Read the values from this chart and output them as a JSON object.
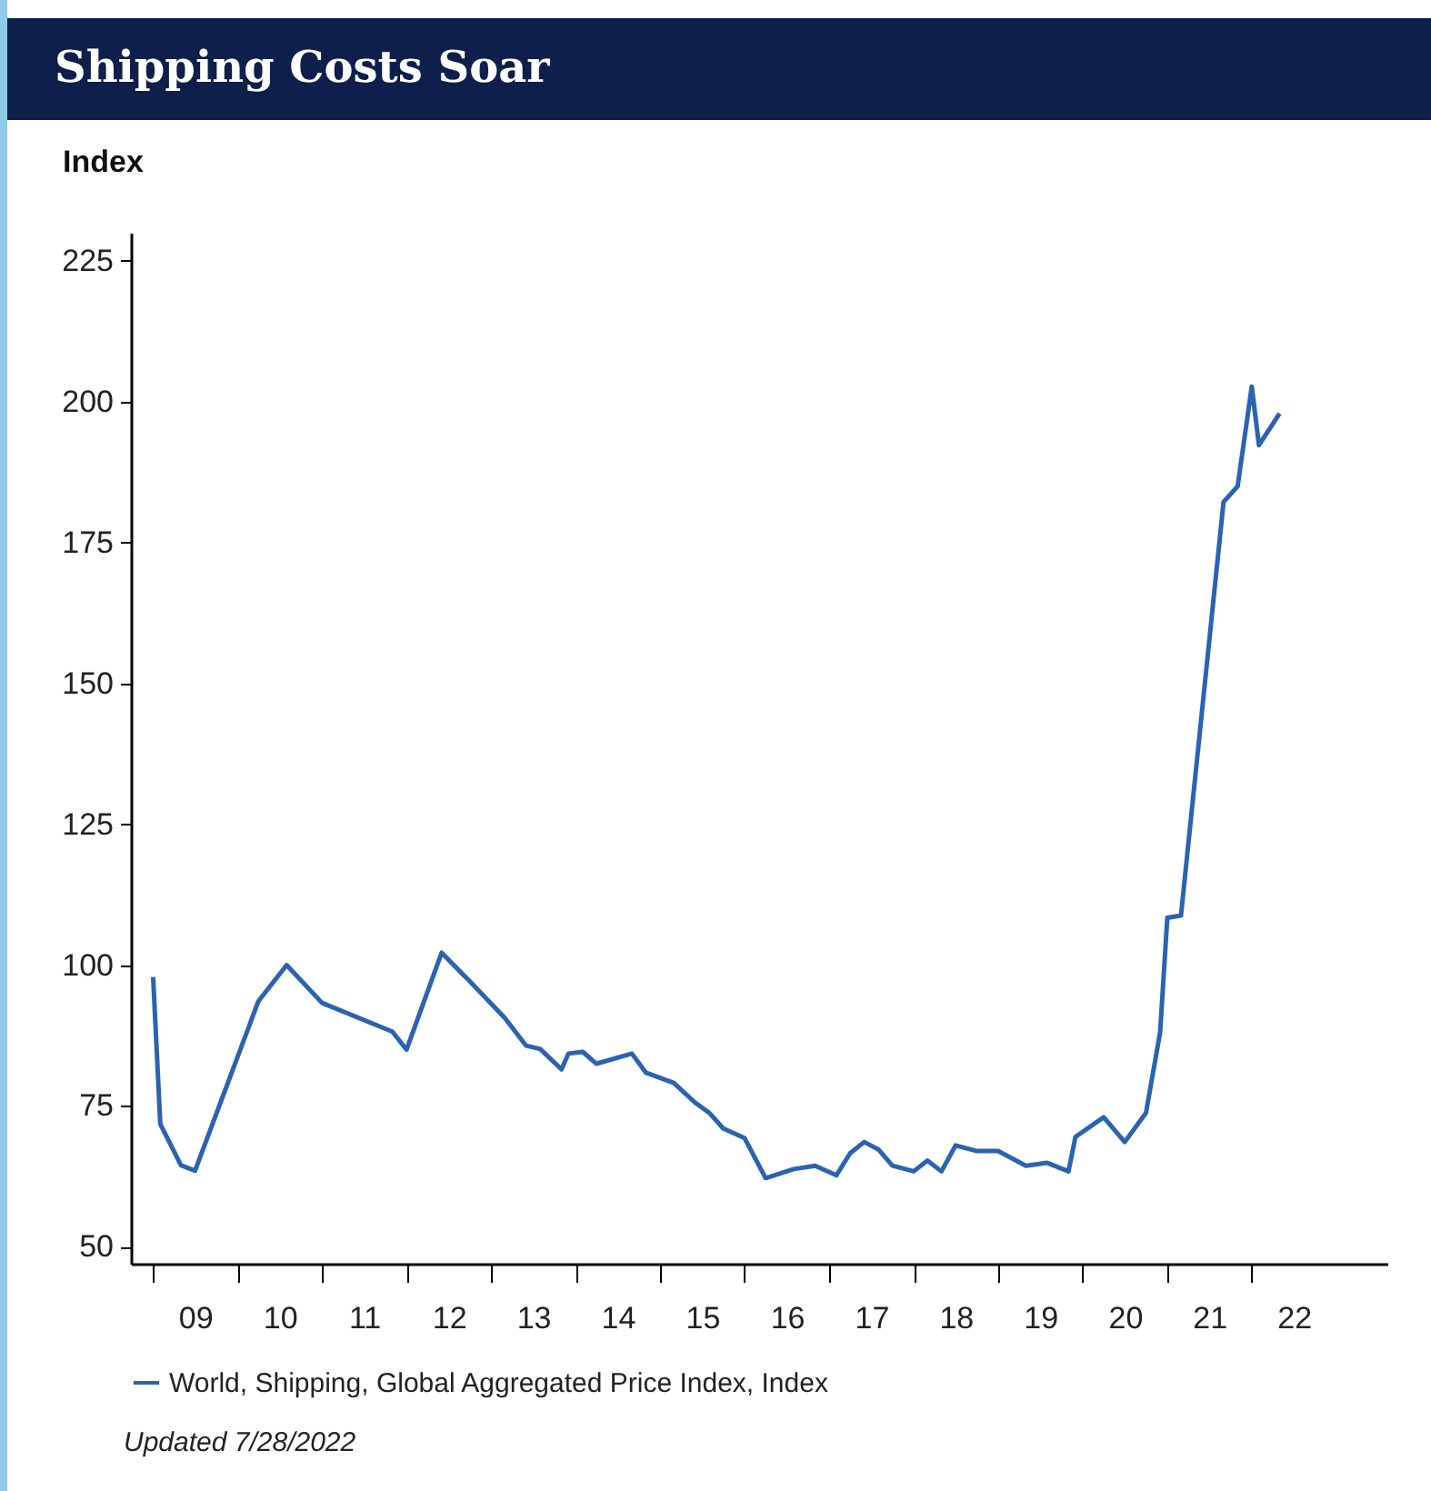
{
  "chart_data": {
    "type": "line",
    "title": "Shipping Costs Soar",
    "ylabel": "Index",
    "x": [
      "2009-01",
      "2009-02",
      "2009-05",
      "2009-07",
      "2010-04",
      "2010-08",
      "2011-01",
      "2011-11",
      "2012-01",
      "2012-06",
      "2012-10",
      "2013-03",
      "2013-06",
      "2013-08",
      "2013-11",
      "2013-12",
      "2014-02",
      "2014-04",
      "2014-09",
      "2014-11",
      "2015-03",
      "2015-06",
      "2015-08",
      "2015-10",
      "2016-01",
      "2016-04",
      "2016-08",
      "2016-11",
      "2017-02",
      "2017-04",
      "2017-06",
      "2017-08",
      "2017-10",
      "2018-01",
      "2018-03",
      "2018-05",
      "2018-07",
      "2018-10",
      "2019-01",
      "2019-05",
      "2019-08",
      "2019-11",
      "2019-12",
      "2020-04",
      "2020-07",
      "2020-10",
      "2020-12",
      "2021-01",
      "2021-03",
      "2021-09",
      "2021-11",
      "2022-01",
      "2022-02",
      "2022-05"
    ],
    "series": [
      {
        "name": "World, Shipping, Global Aggregated Price Index, Index",
        "color": "#2b63b0",
        "values": [
          97.9,
          71.8,
          64.5,
          63.5,
          93.6,
          100.0,
          93.3,
          88.2,
          85.0,
          102.2,
          97.1,
          90.6,
          85.7,
          85.1,
          81.5,
          84.3,
          84.6,
          82.5,
          84.3,
          80.9,
          79.1,
          75.6,
          73.8,
          71.0,
          69.3,
          62.2,
          63.8,
          64.4,
          62.7,
          66.6,
          68.6,
          67.3,
          64.4,
          63.4,
          65.3,
          63.4,
          68.0,
          67.0,
          67.0,
          64.4,
          64.9,
          63.4,
          69.5,
          73.0,
          68.6,
          73.8,
          88.1,
          108.4,
          108.8,
          182.2,
          185.0,
          202.7,
          192.3,
          197.9
        ]
      }
    ],
    "xlim": [
      "2008-09-27",
      "2023-08-10"
    ],
    "xticks": [
      {
        "value": "2009-01-01",
        "label": null
      },
      {
        "value": "2009-07-02",
        "label": "09"
      },
      {
        "value": "2010-01-01",
        "label": null
      },
      {
        "value": "2010-07-02",
        "label": "10"
      },
      {
        "value": "2011-01-01",
        "label": null
      },
      {
        "value": "2011-07-02",
        "label": "11"
      },
      {
        "value": "2012-01-01",
        "label": null
      },
      {
        "value": "2012-07-02",
        "label": "12"
      },
      {
        "value": "2013-01-01",
        "label": null
      },
      {
        "value": "2013-07-02",
        "label": "13"
      },
      {
        "value": "2014-01-01",
        "label": null
      },
      {
        "value": "2014-07-02",
        "label": "14"
      },
      {
        "value": "2015-01-01",
        "label": null
      },
      {
        "value": "2015-07-02",
        "label": "15"
      },
      {
        "value": "2016-01-01",
        "label": null
      },
      {
        "value": "2016-07-02",
        "label": "16"
      },
      {
        "value": "2017-01-01",
        "label": null
      },
      {
        "value": "2017-07-02",
        "label": "17"
      },
      {
        "value": "2018-01-01",
        "label": null
      },
      {
        "value": "2018-07-02",
        "label": "18"
      },
      {
        "value": "2019-01-01",
        "label": null
      },
      {
        "value": "2019-07-02",
        "label": "19"
      },
      {
        "value": "2020-01-01",
        "label": null
      },
      {
        "value": "2020-07-02",
        "label": "20"
      },
      {
        "value": "2021-01-01",
        "label": null
      },
      {
        "value": "2021-07-02",
        "label": "21"
      },
      {
        "value": "2022-01-01",
        "label": null
      },
      {
        "value": "2022-07-02",
        "label": "22"
      }
    ],
    "ylim": [
      47,
      230
    ],
    "yticks": [
      50,
      75,
      100,
      125,
      150,
      175,
      200,
      225
    ],
    "grid": false,
    "legend": "bottom",
    "annotations": [
      "Updated 7/28/2022"
    ]
  }
}
